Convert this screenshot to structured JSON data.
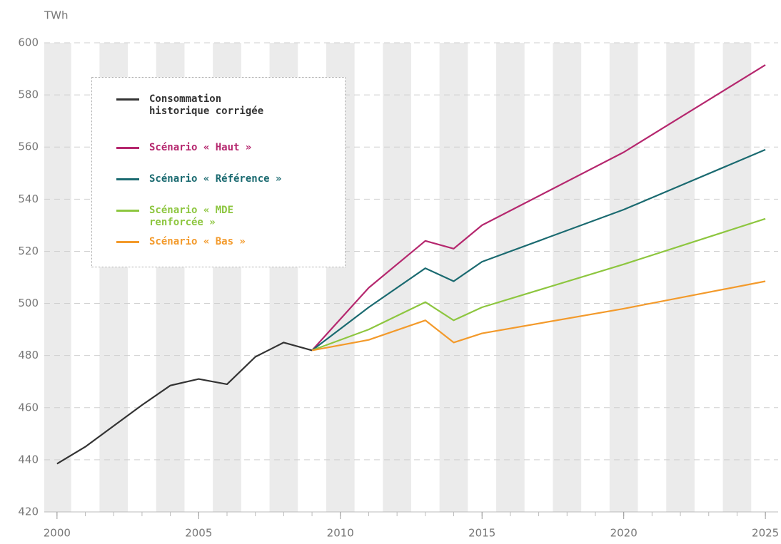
{
  "chart_data": {
    "type": "line",
    "y_unit": "TWh",
    "x": [
      2000,
      2001,
      2002,
      2003,
      2004,
      2005,
      2006,
      2007,
      2008,
      2009,
      2011,
      2013,
      2014,
      2015,
      2020,
      2025
    ],
    "series": [
      {
        "name": "Consommation historique corrigée",
        "color": "#333333",
        "values": [
          438.5,
          445,
          453,
          461,
          468.5,
          471,
          469,
          479.5,
          485,
          482,
          null,
          null,
          null,
          null,
          null,
          null
        ]
      },
      {
        "name": "Scénario « Haut »",
        "color": "#b5276e",
        "values": [
          null,
          null,
          null,
          null,
          null,
          null,
          null,
          null,
          null,
          482,
          506,
          524,
          521,
          530,
          558,
          591.5
        ]
      },
      {
        "name": "Scénario « Référence »",
        "color": "#1a6a70",
        "values": [
          null,
          null,
          null,
          null,
          null,
          null,
          null,
          null,
          null,
          482,
          498.5,
          513.5,
          508.5,
          516,
          536,
          559
        ]
      },
      {
        "name": "Scénario « MDE renforcée »",
        "color": "#8dc63f",
        "values": [
          null,
          null,
          null,
          null,
          null,
          null,
          null,
          null,
          null,
          482,
          490,
          500.5,
          493.5,
          498.5,
          515,
          532.5
        ]
      },
      {
        "name": "Scénario « Bas »",
        "color": "#f39a2b",
        "values": [
          null,
          null,
          null,
          null,
          null,
          null,
          null,
          null,
          null,
          482,
          486,
          493.5,
          485,
          488.5,
          498,
          508.5
        ]
      }
    ],
    "xlim": [
      1999.55,
      2025.45
    ],
    "ylim": [
      420,
      600
    ],
    "xticks": [
      2000,
      2005,
      2010,
      2015,
      2020,
      2025
    ],
    "yticks": [
      420,
      440,
      460,
      480,
      500,
      520,
      540,
      560,
      580,
      600
    ],
    "grid": true
  }
}
